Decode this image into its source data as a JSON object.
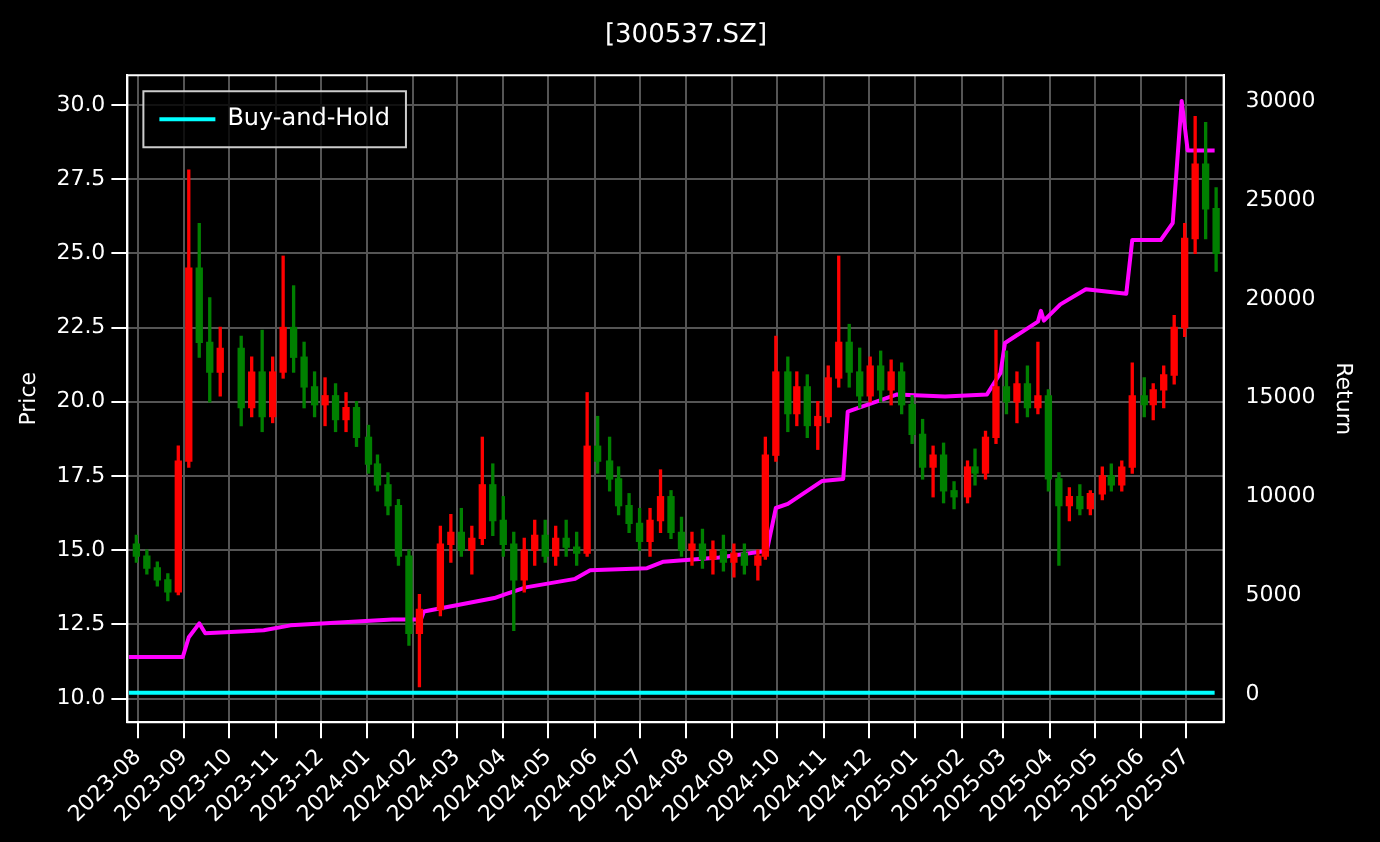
{
  "chart_data": {
    "type": "candlestick",
    "title": "[300537.SZ]",
    "ylabel": "Price",
    "y2label": "Return",
    "x": [
      "2023-07-31",
      "2023-08-07",
      "2023-08-14",
      "2023-08-21",
      "2023-08-28",
      "2023-09-04",
      "2023-09-11",
      "2023-09-18",
      "2023-09-25",
      "2023-10-09",
      "2023-10-16",
      "2023-10-23",
      "2023-10-30",
      "2023-11-06",
      "2023-11-13",
      "2023-11-20",
      "2023-11-27",
      "2023-12-04",
      "2023-12-11",
      "2023-12-18",
      "2023-12-25",
      "2024-01-02",
      "2024-01-08",
      "2024-01-15",
      "2024-01-22",
      "2024-01-29",
      "2024-02-05",
      "2024-02-19",
      "2024-02-26",
      "2024-03-04",
      "2024-03-11",
      "2024-03-18",
      "2024-03-25",
      "2024-04-01",
      "2024-04-08",
      "2024-04-15",
      "2024-04-22",
      "2024-04-29",
      "2024-05-06",
      "2024-05-13",
      "2024-05-20",
      "2024-05-27",
      "2024-06-03",
      "2024-06-11",
      "2024-06-17",
      "2024-06-24",
      "2024-07-01",
      "2024-07-08",
      "2024-07-15",
      "2024-07-22",
      "2024-07-29",
      "2024-08-05",
      "2024-08-12",
      "2024-08-19",
      "2024-08-26",
      "2024-09-02",
      "2024-09-09",
      "2024-09-18",
      "2024-09-23",
      "2024-09-30",
      "2024-10-08",
      "2024-10-14",
      "2024-10-21",
      "2024-10-28",
      "2024-11-04",
      "2024-11-11",
      "2024-11-18",
      "2024-11-25",
      "2024-12-02",
      "2024-12-09",
      "2024-12-16",
      "2024-12-23",
      "2024-12-30",
      "2025-01-06",
      "2025-01-13",
      "2025-01-20",
      "2025-01-27",
      "2025-02-05",
      "2025-02-10",
      "2025-02-17",
      "2025-02-24",
      "2025-03-03",
      "2025-03-10",
      "2025-03-17",
      "2025-03-24",
      "2025-03-31",
      "2025-04-07",
      "2025-04-14",
      "2025-04-21",
      "2025-04-28",
      "2025-05-06",
      "2025-05-12",
      "2025-05-19",
      "2025-05-26",
      "2025-06-03",
      "2025-06-09",
      "2025-06-16",
      "2025-06-23",
      "2025-06-30",
      "2025-07-07",
      "2025-07-14",
      "2025-07-21"
    ],
    "ohlc": [
      [
        15.2,
        15.5,
        14.6,
        14.8
      ],
      [
        14.8,
        15.0,
        14.2,
        14.4
      ],
      [
        14.4,
        14.6,
        13.8,
        14.0
      ],
      [
        14.0,
        14.2,
        13.3,
        13.6
      ],
      [
        13.6,
        18.5,
        13.5,
        18.0
      ],
      [
        18.0,
        27.8,
        17.8,
        24.5
      ],
      [
        24.5,
        26.0,
        21.5,
        22.0
      ],
      [
        22.0,
        23.5,
        20.0,
        21.0
      ],
      [
        21.0,
        22.5,
        20.2,
        21.8
      ],
      [
        21.8,
        22.2,
        19.2,
        19.8
      ],
      [
        19.8,
        21.5,
        19.5,
        21.0
      ],
      [
        21.0,
        22.4,
        19.0,
        19.5
      ],
      [
        19.5,
        21.5,
        19.3,
        21.0
      ],
      [
        21.0,
        24.9,
        20.8,
        22.5
      ],
      [
        22.5,
        23.9,
        21.0,
        21.5
      ],
      [
        21.5,
        22.0,
        19.8,
        20.5
      ],
      [
        20.5,
        21.0,
        19.5,
        19.9
      ],
      [
        19.9,
        20.8,
        19.2,
        20.2
      ],
      [
        20.2,
        20.6,
        19.0,
        19.4
      ],
      [
        19.4,
        20.3,
        19.0,
        19.8
      ],
      [
        19.8,
        20.0,
        18.5,
        18.8
      ],
      [
        18.8,
        19.2,
        17.6,
        17.9
      ],
      [
        17.9,
        18.2,
        17.0,
        17.2
      ],
      [
        17.2,
        17.6,
        16.2,
        16.5
      ],
      [
        16.5,
        16.7,
        14.5,
        14.8
      ],
      [
        14.8,
        15.0,
        11.8,
        12.2
      ],
      [
        12.2,
        13.5,
        10.4,
        13.0
      ],
      [
        13.0,
        15.8,
        12.8,
        15.2
      ],
      [
        15.2,
        16.2,
        14.6,
        15.6
      ],
      [
        15.6,
        16.4,
        14.8,
        15.0
      ],
      [
        15.0,
        15.8,
        14.2,
        15.4
      ],
      [
        15.4,
        18.8,
        15.2,
        17.2
      ],
      [
        17.2,
        17.9,
        15.5,
        16.0
      ],
      [
        16.0,
        16.8,
        14.8,
        15.2
      ],
      [
        15.2,
        15.6,
        12.3,
        14.0
      ],
      [
        14.0,
        15.4,
        13.6,
        15.0
      ],
      [
        15.0,
        16.0,
        14.5,
        15.5
      ],
      [
        15.5,
        16.0,
        14.6,
        14.8
      ],
      [
        14.8,
        15.8,
        14.5,
        15.4
      ],
      [
        15.4,
        16.0,
        14.8,
        15.1
      ],
      [
        15.1,
        15.6,
        14.5,
        14.9
      ],
      [
        14.9,
        20.3,
        14.8,
        18.5
      ],
      [
        18.5,
        19.5,
        17.6,
        18.0
      ],
      [
        18.0,
        18.8,
        17.0,
        17.4
      ],
      [
        17.4,
        17.8,
        16.2,
        16.5
      ],
      [
        16.5,
        16.9,
        15.6,
        15.9
      ],
      [
        15.9,
        16.4,
        15.0,
        15.3
      ],
      [
        15.3,
        16.4,
        14.8,
        16.0
      ],
      [
        16.0,
        17.7,
        15.6,
        16.8
      ],
      [
        16.8,
        17.0,
        15.4,
        15.6
      ],
      [
        15.6,
        16.1,
        14.8,
        15.0
      ],
      [
        15.0,
        15.6,
        14.5,
        15.2
      ],
      [
        15.2,
        15.7,
        14.4,
        14.7
      ],
      [
        14.7,
        15.3,
        14.2,
        15.0
      ],
      [
        15.0,
        15.5,
        14.3,
        14.6
      ],
      [
        14.6,
        15.2,
        14.1,
        14.9
      ],
      [
        14.9,
        15.2,
        14.2,
        14.5
      ],
      [
        14.5,
        15.0,
        14.0,
        14.8
      ],
      [
        14.8,
        18.8,
        14.7,
        18.2
      ],
      [
        18.2,
        22.2,
        18.0,
        21.0
      ],
      [
        21.0,
        21.5,
        19.0,
        19.6
      ],
      [
        19.6,
        21.0,
        19.2,
        20.5
      ],
      [
        20.5,
        20.9,
        18.8,
        19.2
      ],
      [
        19.2,
        20.0,
        18.4,
        19.5
      ],
      [
        19.5,
        21.2,
        19.3,
        20.8
      ],
      [
        20.8,
        24.9,
        20.5,
        22.0
      ],
      [
        22.0,
        22.6,
        20.5,
        21.0
      ],
      [
        21.0,
        21.8,
        19.8,
        20.2
      ],
      [
        20.2,
        21.5,
        20.0,
        21.2
      ],
      [
        21.2,
        21.7,
        20.0,
        20.4
      ],
      [
        20.4,
        21.4,
        19.9,
        21.0
      ],
      [
        21.0,
        21.3,
        19.6,
        19.9
      ],
      [
        19.9,
        20.2,
        18.6,
        18.9
      ],
      [
        18.9,
        19.4,
        17.4,
        17.8
      ],
      [
        17.8,
        18.5,
        16.8,
        18.2
      ],
      [
        18.2,
        18.6,
        16.6,
        17.0
      ],
      [
        17.0,
        17.3,
        16.4,
        16.8
      ],
      [
        16.8,
        18.0,
        16.6,
        17.8
      ],
      [
        17.8,
        18.4,
        17.2,
        17.6
      ],
      [
        17.6,
        19.0,
        17.4,
        18.8
      ],
      [
        18.8,
        22.4,
        18.6,
        20.5
      ],
      [
        20.5,
        21.7,
        19.6,
        20.0
      ],
      [
        20.0,
        21.0,
        19.3,
        20.6
      ],
      [
        20.6,
        21.2,
        19.5,
        19.8
      ],
      [
        19.8,
        22.0,
        19.6,
        20.2
      ],
      [
        20.2,
        20.4,
        17.0,
        17.4
      ],
      [
        17.4,
        17.6,
        14.5,
        16.5
      ],
      [
        16.5,
        17.1,
        16.0,
        16.8
      ],
      [
        16.8,
        17.2,
        16.2,
        16.4
      ],
      [
        16.4,
        17.0,
        16.2,
        16.9
      ],
      [
        16.9,
        17.8,
        16.7,
        17.5
      ],
      [
        17.5,
        17.9,
        17.0,
        17.2
      ],
      [
        17.2,
        18.0,
        17.0,
        17.8
      ],
      [
        17.8,
        21.3,
        17.6,
        20.2
      ],
      [
        20.2,
        20.8,
        19.5,
        19.9
      ],
      [
        19.9,
        20.6,
        19.4,
        20.4
      ],
      [
        20.4,
        21.2,
        19.8,
        20.9
      ],
      [
        20.9,
        22.9,
        20.6,
        22.5
      ],
      [
        22.5,
        26.0,
        22.2,
        25.5
      ],
      [
        25.5,
        29.6,
        25.0,
        28.0
      ],
      [
        28.0,
        29.4,
        25.5,
        26.5
      ],
      [
        26.5,
        27.2,
        24.4,
        25.0
      ]
    ],
    "colors": [
      "#008000",
      "#008000",
      "#008000",
      "#008000",
      "#ff0000",
      "#ff0000",
      "#008000",
      "#008000",
      "#ff0000",
      "#008000",
      "#ff0000",
      "#008000",
      "#ff0000",
      "#ff0000",
      "#008000",
      "#008000",
      "#008000",
      "#ff0000",
      "#008000",
      "#ff0000",
      "#008000",
      "#008000",
      "#008000",
      "#008000",
      "#008000",
      "#008000",
      "#ff0000",
      "#ff0000",
      "#ff0000",
      "#008000",
      "#ff0000",
      "#ff0000",
      "#008000",
      "#008000",
      "#008000",
      "#ff0000",
      "#ff0000",
      "#008000",
      "#ff0000",
      "#008000",
      "#008000",
      "#ff0000",
      "#008000",
      "#008000",
      "#008000",
      "#008000",
      "#008000",
      "#ff0000",
      "#ff0000",
      "#008000",
      "#008000",
      "#ff0000",
      "#008000",
      "#ff0000",
      "#008000",
      "#ff0000",
      "#008000",
      "#ff0000",
      "#ff0000",
      "#ff0000",
      "#008000",
      "#ff0000",
      "#008000",
      "#ff0000",
      "#ff0000",
      "#ff0000",
      "#008000",
      "#008000",
      "#ff0000",
      "#008000",
      "#ff0000",
      "#008000",
      "#008000",
      "#008000",
      "#ff0000",
      "#008000",
      "#008000",
      "#ff0000",
      "#008000",
      "#ff0000",
      "#ff0000",
      "#008000",
      "#ff0000",
      "#008000",
      "#ff0000",
      "#008000",
      "#008000",
      "#ff0000",
      "#008000",
      "#ff0000",
      "#ff0000",
      "#008000",
      "#ff0000",
      "#ff0000",
      "#008000",
      "#ff0000",
      "#ff0000",
      "#ff0000",
      "#ff0000",
      "#ff0000",
      "#008000",
      "#008000"
    ],
    "series": [
      {
        "type": "line",
        "axis": "y2",
        "color": "#ff00ff",
        "x": [
          "2023-07-26",
          "2023-08-31",
          "2023-09-04",
          "2023-09-11",
          "2023-09-15",
          "2023-10-24",
          "2023-11-11",
          "2024-01-18",
          "2024-02-06",
          "2024-02-08",
          "2024-03-26",
          "2024-04-16",
          "2024-05-19",
          "2024-05-29",
          "2024-07-06",
          "2024-07-17",
          "2024-08-23",
          "2024-09-24",
          "2024-09-30",
          "2024-10-08",
          "2024-10-31",
          "2024-11-14",
          "2024-11-17",
          "2024-12-20",
          "2025-01-21",
          "2025-02-18",
          "2025-02-27",
          "2025-03-02",
          "2025-03-24",
          "2025-03-26",
          "2025-03-28",
          "2025-04-08",
          "2025-04-25",
          "2025-05-22",
          "2025-05-26",
          "2025-06-14",
          "2025-06-22",
          "2025-06-28",
          "2025-07-02",
          "2025-07-20"
        ],
        "values": [
          1900,
          1900,
          2900,
          3600,
          3100,
          3250,
          3500,
          3800,
          3800,
          4200,
          4880,
          5420,
          5850,
          6280,
          6390,
          6720,
          6930,
          7260,
          9430,
          9640,
          10800,
          10900,
          14300,
          15170,
          15060,
          15170,
          16250,
          17770,
          18850,
          19390,
          18900,
          19720,
          20480,
          20260,
          22970,
          22970,
          23830,
          30000,
          27500,
          27500
        ]
      },
      {
        "type": "line",
        "axis": "y2",
        "name": "Buy-and-Hold",
        "color": "#00ffff",
        "x": [
          "2023-07-26",
          "2024-07-26",
          "2025-07-20"
        ],
        "values": [
          100,
          100,
          100
        ]
      }
    ],
    "xlim": [
      "2023-07-25",
      "2025-07-26"
    ],
    "xticks": [
      "2023-08",
      "2023-09",
      "2023-10",
      "2023-11",
      "2023-12",
      "2024-01",
      "2024-02",
      "2024-03",
      "2024-04",
      "2024-05",
      "2024-06",
      "2024-07",
      "2024-08",
      "2024-09",
      "2024-10",
      "2024-11",
      "2024-12",
      "2025-01",
      "2025-02",
      "2025-03",
      "2025-04",
      "2025-05",
      "2025-06",
      "2025-07"
    ],
    "ylim": [
      9.2,
      31.0
    ],
    "yticks": [
      {
        "value": 10,
        "label": "10.0"
      },
      {
        "value": 12.5,
        "label": "12.5"
      },
      {
        "value": 15,
        "label": "15.0"
      },
      {
        "value": 17.5,
        "label": "17.5"
      },
      {
        "value": 20,
        "label": "20.0"
      },
      {
        "value": 22.5,
        "label": "22.5"
      },
      {
        "value": 25,
        "label": "25.0"
      },
      {
        "value": 27.5,
        "label": "27.5"
      },
      {
        "value": 30,
        "label": "30.0"
      }
    ],
    "y2lim": [
      -1400,
      31300
    ],
    "y2ticks": [
      0,
      5000,
      10000,
      15000,
      20000,
      25000,
      30000
    ],
    "grid": true,
    "legend": "top left"
  }
}
